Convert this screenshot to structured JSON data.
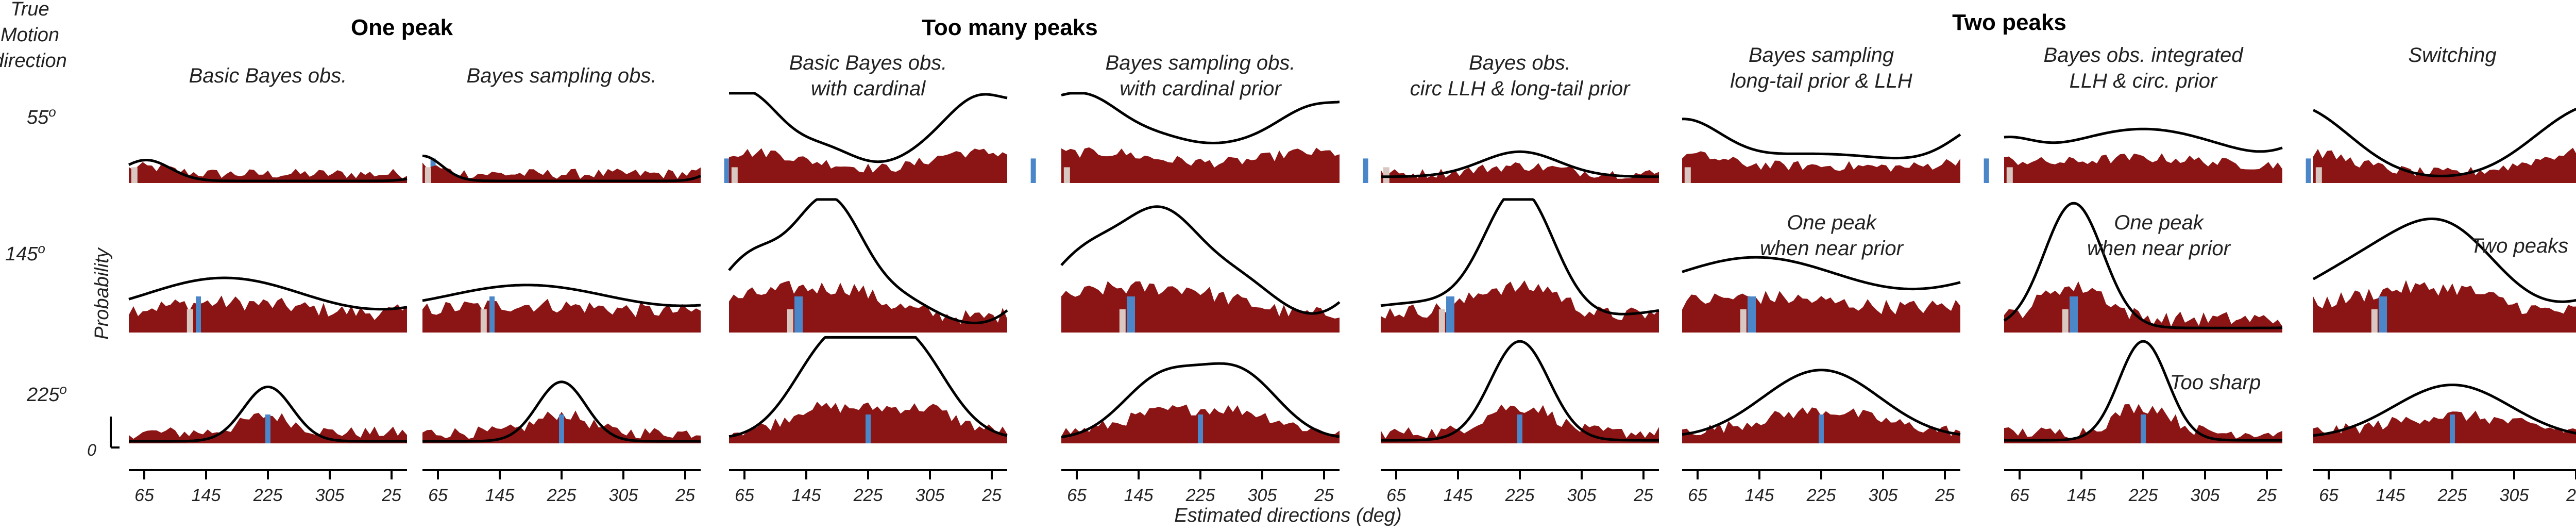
{
  "figure": {
    "row_header": [
      "True",
      "Motion",
      "direction"
    ],
    "ylabel": "Probability",
    "xlabel": "Estimated directions (deg)",
    "y_zero_label": "0",
    "x_ticks": [
      "65",
      "145",
      "225",
      "305",
      "25"
    ],
    "rows": [
      {
        "label": "55",
        "unit": "o"
      },
      {
        "label": "145",
        "unit": "o"
      },
      {
        "label": "225",
        "unit": "o"
      }
    ],
    "groups": [
      {
        "label": "One peak"
      },
      {
        "label": "Too many peaks"
      },
      {
        "label": "Two peaks"
      }
    ],
    "colors": {
      "hist": "#8b1414",
      "model": "#000000",
      "true_marker": "#4a86c8",
      "prior_marker": "#d9c7c2"
    }
  },
  "chart_data": [
    {
      "type": "area",
      "title": [
        "Basic Bayes obs."
      ],
      "rows": [
        {
          "true_dir": "55",
          "model_peaks": [
            [
              85,
              2.5,
              0.25
            ]
          ],
          "model_base": 0.0
        },
        {
          "true_dir": "145",
          "model_peaks": [
            [
              175,
              9,
              0.42
            ]
          ],
          "model_base": 0.0
        },
        {
          "true_dir": "225",
          "model_peaks": [
            [
              225,
              2.5,
              0.55
            ]
          ],
          "model_base": 0.0
        }
      ]
    },
    {
      "type": "area",
      "title": [
        "Bayes sampling obs."
      ],
      "rows": [
        {
          "true_dir": "55",
          "model_peaks": [
            [
              65,
              2.0,
              0.3
            ]
          ],
          "model_base": 0.0
        },
        {
          "true_dir": "145",
          "model_peaks": [
            [
              185,
              10,
              0.36
            ]
          ],
          "model_base": 0.0
        },
        {
          "true_dir": "225",
          "model_peaks": [
            [
              225,
              2.5,
              0.6
            ]
          ],
          "model_base": 0.0
        }
      ]
    },
    {
      "type": "area",
      "title": [
        "Basic Bayes obs.",
        "with cardinal"
      ],
      "rows": [
        {
          "true_dir": "55",
          "model_peaks": [
            [
              85,
              3.5,
              0.98
            ],
            [
              175,
              3.5,
              0.35
            ],
            [
              290,
              3.5,
              0.25
            ],
            [
              355,
              3.5,
              0.88
            ]
          ],
          "model_base": 0.02
        },
        {
          "true_dir": "145",
          "model_peaks": [
            [
              90,
              3.5,
              0.55
            ],
            [
              180,
              3.5,
              1.0
            ],
            [
              265,
              3.5,
              0.2
            ]
          ],
          "model_base": 0.02
        },
        {
          "true_dir": "225",
          "model_peaks": [
            [
              185,
              4,
              0.95
            ],
            [
              270,
              4,
              0.95
            ]
          ],
          "model_base": 0.02
        }
      ]
    },
    {
      "type": "area",
      "title": [
        "Bayes sampling obs.",
        "with cardinal prior"
      ],
      "rows": [
        {
          "true_dir": "55",
          "model_peaks": [
            [
              90,
              4,
              0.9
            ],
            [
              180,
              4,
              0.4
            ],
            [
              270,
              4,
              0.3
            ],
            [
              355,
              4,
              0.75
            ]
          ],
          "model_base": 0.02
        },
        {
          "true_dir": "145",
          "model_peaks": [
            [
              90,
              4,
              0.55
            ],
            [
              180,
              4,
              0.85
            ],
            [
              270,
              4,
              0.35
            ]
          ],
          "model_base": 0.02
        },
        {
          "true_dir": "225",
          "model_peaks": [
            [
              180,
              4,
              0.6
            ],
            [
              270,
              4,
              0.65
            ]
          ],
          "model_base": 0.02
        }
      ]
    },
    {
      "type": "area",
      "title": [
        "Bayes obs.",
        "circ LLH & long-tail prior"
      ],
      "rows": [
        {
          "true_dir": "55",
          "model_peaks": [
            [
              225,
              4,
              0.3
            ]
          ],
          "model_base": 0.05
        },
        {
          "true_dir": "145",
          "model_peaks": [
            [
              225,
              3.5,
              1.0
            ],
            [
              115,
              9,
              0.2
            ]
          ],
          "model_base": 0.02
        },
        {
          "true_dir": "225",
          "model_peaks": [
            [
              225,
              3,
              1.0
            ]
          ],
          "model_base": 0.01
        }
      ]
    },
    {
      "type": "area",
      "title": [
        "Bayes sampling",
        "long-tail prior & LLH"
      ],
      "rows": [
        {
          "true_dir": "55",
          "model_peaks": [
            [
              220,
              10,
              0.3
            ],
            [
              65,
              4,
              0.55
            ]
          ],
          "model_base": 0.02
        },
        {
          "true_dir": "145",
          "model_peaks": [
            [
              150,
              10,
              0.55
            ]
          ],
          "model_base": 0.03,
          "annotation": [
            "One peak",
            "when near prior"
          ]
        },
        {
          "true_dir": "225",
          "model_peaks": [
            [
              225,
              6,
              0.7
            ]
          ],
          "model_base": 0.02
        }
      ]
    },
    {
      "type": "area",
      "title": [
        "Bayes obs. integrated",
        "LLH & circ. prior"
      ],
      "rows": [
        {
          "true_dir": "55",
          "model_peaks": [
            [
              225,
              9,
              0.6
            ],
            [
              65,
              3,
              0.25
            ]
          ],
          "model_base": 0.02
        },
        {
          "true_dir": "145",
          "model_peaks": [
            [
              145,
              3,
              1.0
            ]
          ],
          "model_base": 0.02,
          "annotation": [
            "One peak",
            "when near prior"
          ]
        },
        {
          "true_dir": "225",
          "model_peaks": [
            [
              225,
              2.5,
              1.0
            ]
          ],
          "model_base": 0.01,
          "annotation": [
            "Too sharp"
          ]
        }
      ]
    },
    {
      "type": "area",
      "title": [
        "Switching"
      ],
      "rows": [
        {
          "true_dir": "55",
          "model_peaks": [
            [
              65,
              5,
              0.6
            ],
            [
              355,
              5,
              0.5
            ]
          ],
          "model_base": 0.02
        },
        {
          "true_dir": "145",
          "model_peaks": [
            [
              145,
              8,
              0.55
            ],
            [
              225,
              5,
              0.45
            ]
          ],
          "model_base": 0.03,
          "annotation": [
            "Two peaks"
          ]
        },
        {
          "true_dir": "225",
          "model_peaks": [
            [
              225,
              6,
              0.55
            ]
          ],
          "model_base": 0.02
        }
      ]
    }
  ]
}
